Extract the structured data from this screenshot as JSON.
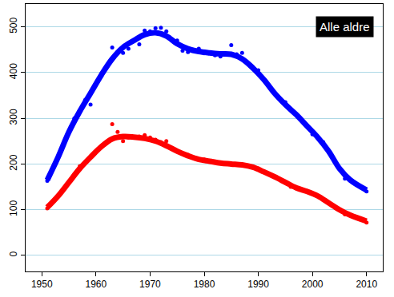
{
  "chart_data": {
    "type": "line",
    "annotations": [
      "Alle aldre"
    ],
    "xlim": [
      1947,
      2013
    ],
    "xticks": [
      1950,
      1960,
      1970,
      1980,
      1990,
      2000,
      2010
    ],
    "ylim": [
      -35,
      550
    ],
    "yticks": [
      0,
      100,
      200,
      300,
      400,
      500
    ],
    "grid": true,
    "series": [
      {
        "type": "line",
        "color": "#0000ff",
        "x": [
          1951,
          1953,
          1955,
          1957,
          1959,
          1961,
          1963,
          1965,
          1967,
          1969,
          1971,
          1973,
          1975,
          1977,
          1979,
          1981,
          1983,
          1985,
          1987,
          1989,
          1991,
          1993,
          1995,
          1997,
          1999,
          2001,
          2003,
          2005,
          2007,
          2010
        ],
        "values": [
          165,
          215,
          270,
          315,
          355,
          395,
          430,
          455,
          470,
          483,
          487,
          480,
          463,
          452,
          446,
          443,
          441,
          440,
          430,
          410,
          385,
          355,
          330,
          308,
          283,
          258,
          228,
          190,
          165,
          143
        ]
      },
      {
        "type": "scatter",
        "color": "#0000ff",
        "x": [
          1951,
          1956,
          1958,
          1959,
          1963,
          1964,
          1965,
          1966,
          1968,
          1969,
          1970,
          1971,
          1972,
          1973,
          1975,
          1976,
          1977,
          1978,
          1979,
          1980,
          1982,
          1983,
          1985,
          1986,
          1987,
          1990,
          1995,
          2000,
          2002,
          2006,
          2010
        ],
        "values": [
          163,
          300,
          340,
          330,
          455,
          445,
          443,
          452,
          462,
          492,
          490,
          497,
          498,
          490,
          470,
          448,
          445,
          450,
          452,
          442,
          438,
          435,
          460,
          440,
          443,
          405,
          335,
          265,
          248,
          168,
          140
        ]
      },
      {
        "type": "line",
        "color": "#ff0000",
        "x": [
          1951,
          1953,
          1955,
          1957,
          1959,
          1961,
          1963,
          1965,
          1967,
          1969,
          1971,
          1973,
          1975,
          1977,
          1979,
          1981,
          1983,
          1985,
          1987,
          1989,
          1991,
          1993,
          1995,
          1997,
          1999,
          2001,
          2003,
          2005,
          2007,
          2010
        ],
        "values": [
          105,
          130,
          160,
          190,
          215,
          238,
          255,
          260,
          259,
          256,
          250,
          240,
          228,
          218,
          210,
          206,
          202,
          200,
          198,
          193,
          183,
          172,
          160,
          148,
          140,
          130,
          115,
          100,
          88,
          75
        ]
      },
      {
        "type": "scatter",
        "color": "#ff0000",
        "x": [
          1951,
          1957,
          1963,
          1964,
          1965,
          1966,
          1967,
          1968,
          1969,
          1970,
          1971,
          1972,
          1973,
          1975,
          1977,
          1980,
          1984,
          1987,
          1990,
          1996,
          2000,
          2006,
          2010
        ],
        "values": [
          103,
          195,
          287,
          270,
          250,
          258,
          258,
          260,
          263,
          258,
          253,
          248,
          250,
          228,
          220,
          210,
          200,
          198,
          190,
          150,
          135,
          90,
          72
        ]
      }
    ]
  }
}
